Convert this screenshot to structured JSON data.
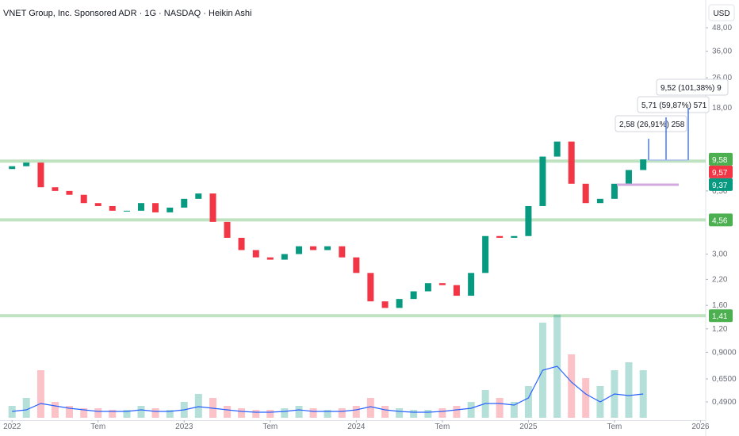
{
  "chart_data": {
    "type": "candlestick",
    "title": "VNET Group, Inc. Sponsored ADR · 1G · NASDAQ · Heikin Ashi",
    "currency": "USD",
    "log_scale": true,
    "xlim": [
      2021.93,
      2026.03
    ],
    "xticks": [
      {
        "value": 2022,
        "label": "2022"
      },
      {
        "value": 2022.5,
        "label": "Tem"
      },
      {
        "value": 2023,
        "label": "2023"
      },
      {
        "value": 2023.5,
        "label": "Tem"
      },
      {
        "value": 2024,
        "label": "2024"
      },
      {
        "value": 2024.5,
        "label": "Tem"
      },
      {
        "value": 2025,
        "label": "2025"
      },
      {
        "value": 2025.5,
        "label": "Tem"
      },
      {
        "value": 2026,
        "label": "2026"
      }
    ],
    "ylim": [
      0.392,
      61.2
    ],
    "yticks": [
      {
        "value": 48,
        "label": "48,00"
      },
      {
        "value": 36,
        "label": "36,00"
      },
      {
        "value": 26,
        "label": "26,00"
      },
      {
        "value": 18,
        "label": "18,00"
      },
      {
        "value": 6.5,
        "label": "6,50"
      },
      {
        "value": 3,
        "label": "3,00"
      },
      {
        "value": 2.2,
        "label": "2,20"
      },
      {
        "value": 1.6,
        "label": "1,60"
      },
      {
        "value": 1.2,
        "label": "1,20"
      },
      {
        "value": 0.9,
        "label": "0,9000"
      },
      {
        "value": 0.65,
        "label": "0,6500"
      },
      {
        "value": 0.49,
        "label": "0,4900"
      }
    ],
    "x": [
      2022.0,
      2022.083,
      2022.167,
      2022.25,
      2022.333,
      2022.417,
      2022.5,
      2022.583,
      2022.667,
      2022.75,
      2022.833,
      2022.917,
      2023.0,
      2023.083,
      2023.167,
      2023.25,
      2023.333,
      2023.417,
      2023.5,
      2023.583,
      2023.667,
      2023.75,
      2023.833,
      2023.917,
      2024.0,
      2024.083,
      2024.167,
      2024.25,
      2024.333,
      2024.417,
      2024.5,
      2024.583,
      2024.667,
      2024.75,
      2024.833,
      2024.917,
      2025.0,
      2025.083,
      2025.167,
      2025.25,
      2025.333,
      2025.417,
      2025.5,
      2025.583,
      2025.667
    ],
    "open": [
      8.5,
      8.8,
      9.2,
      6.8,
      6.5,
      6.2,
      5.6,
      5.4,
      5.1,
      5.1,
      5.6,
      5.0,
      5.3,
      5.9,
      6.3,
      4.45,
      3.66,
      3.15,
      2.88,
      2.8,
      3.0,
      3.3,
      3.15,
      3.3,
      2.88,
      2.38,
      1.68,
      1.55,
      1.73,
      1.9,
      2.1,
      2.05,
      1.8,
      2.38,
      3.74,
      3.66,
      3.74,
      5.4,
      9.9,
      11.9,
      7.1,
      5.6,
      5.9,
      7.1,
      8.4
    ],
    "close": [
      8.8,
      9.2,
      6.8,
      6.5,
      6.2,
      5.6,
      5.4,
      5.1,
      5.1,
      5.6,
      5.0,
      5.3,
      5.9,
      6.3,
      4.45,
      3.66,
      3.15,
      2.88,
      2.8,
      3.0,
      3.3,
      3.15,
      3.3,
      2.88,
      2.38,
      1.68,
      1.55,
      1.73,
      1.9,
      2.1,
      2.05,
      1.8,
      2.38,
      3.74,
      3.66,
      3.74,
      5.4,
      9.9,
      11.9,
      7.1,
      5.6,
      5.9,
      7.1,
      8.4,
      9.57
    ],
    "up_color": "#089981",
    "down_color": "#f23645",
    "volume": [
      15,
      25,
      60,
      20,
      15,
      12,
      12,
      10,
      10,
      15,
      12,
      10,
      20,
      30,
      25,
      15,
      12,
      10,
      10,
      12,
      15,
      12,
      10,
      12,
      15,
      25,
      15,
      12,
      10,
      10,
      12,
      15,
      20,
      35,
      25,
      20,
      40,
      120,
      130,
      80,
      50,
      40,
      60,
      70,
      60
    ],
    "volume_ma": [
      8,
      10,
      18,
      15,
      12,
      10,
      8,
      8,
      8,
      10,
      8,
      8,
      10,
      14,
      12,
      10,
      8,
      7,
      7,
      8,
      10,
      8,
      8,
      8,
      10,
      14,
      10,
      8,
      7,
      7,
      8,
      10,
      12,
      18,
      18,
      16,
      25,
      60,
      65,
      45,
      30,
      20,
      30,
      28,
      30
    ],
    "volume_ma_color": "#2962ff",
    "levels": [
      {
        "value": 9.37,
        "label": "9,37",
        "color": "#089981"
      },
      {
        "value": 4.56,
        "label": "4,56",
        "color": "#4caf50"
      },
      {
        "value": 1.41,
        "label": "1,41",
        "color": "#4caf50"
      }
    ],
    "price_labels": [
      {
        "value": 9.58,
        "label": "9,58",
        "color": "#4caf50"
      },
      {
        "value": 9.57,
        "label": "9,57",
        "color": "#f23645"
      }
    ],
    "annotations": [
      "2,58 (26,91%) 258",
      "5,71 (59,87%) 571",
      "9,52 (101,38%) 9"
    ]
  }
}
